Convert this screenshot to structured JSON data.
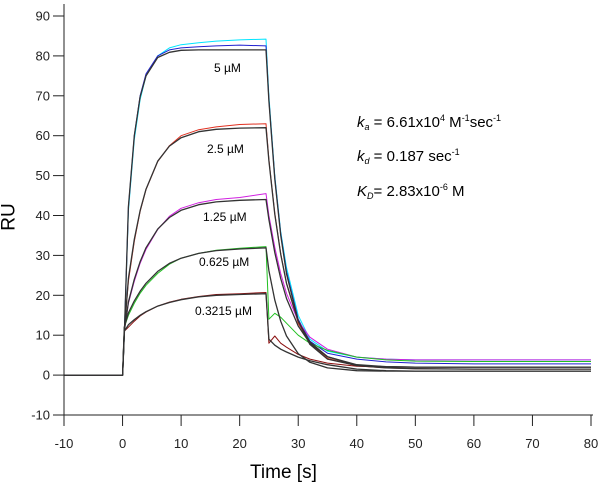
{
  "chart_data": {
    "type": "line",
    "xlabel": "Time [s]",
    "ylabel": "RU",
    "xlim": [
      -10,
      80
    ],
    "ylim": [
      -10,
      90
    ],
    "xticks": [
      -10,
      0,
      10,
      20,
      30,
      40,
      50,
      60,
      70,
      80
    ],
    "yticks": [
      -10,
      0,
      10,
      20,
      30,
      40,
      50,
      60,
      70,
      80,
      90
    ],
    "grid": false,
    "x": [
      -10,
      0,
      0.3,
      1,
      2,
      3,
      4,
      6,
      8,
      10,
      13,
      16,
      20,
      24.5,
      25,
      26,
      27,
      28,
      30,
      32,
      35,
      40,
      45,
      50,
      60,
      70,
      80
    ],
    "series": [
      {
        "color": "#00e5ff",
        "values": [
          0,
          0,
          10,
          41,
          59,
          69,
          75,
          80,
          82,
          82.8,
          83.3,
          83.7,
          84,
          84.2,
          70,
          50,
          36,
          27,
          15,
          9,
          6,
          4.5,
          4,
          3.8,
          3.8,
          3.8,
          3.8
        ]
      },
      {
        "color": "#2020d0",
        "values": [
          0,
          0,
          10,
          42,
          60,
          70,
          75.5,
          80,
          81.5,
          82,
          82.3,
          82.5,
          82.7,
          82.5,
          69,
          49.5,
          35.5,
          26,
          14,
          8.5,
          5.5,
          4,
          3.3,
          3,
          2.8,
          2.8,
          2.8
        ]
      },
      {
        "color": "#e03020",
        "values": [
          0,
          0,
          11,
          23.5,
          33.5,
          41,
          46.5,
          53.5,
          57.5,
          60,
          61.5,
          62.2,
          62.8,
          63,
          54,
          40.5,
          30.5,
          23,
          13,
          8,
          4.2,
          2.3,
          1.8,
          1.6,
          1.5,
          1.5,
          1.5
        ]
      },
      {
        "color": "#d020e0",
        "values": [
          0,
          0,
          11,
          18,
          23.5,
          28,
          31.5,
          36.5,
          39.8,
          41.8,
          43.2,
          44,
          44.5,
          45.5,
          40,
          32,
          25.5,
          20.5,
          13.5,
          9.5,
          6.5,
          4.5,
          4,
          3.8,
          3.8,
          3.8,
          3.8
        ]
      },
      {
        "color": "#20c020",
        "values": [
          0,
          0,
          12,
          15,
          18,
          20.5,
          22.5,
          25.5,
          27.8,
          29.3,
          30.5,
          31.3,
          31.8,
          32.2,
          14,
          15.5,
          14.5,
          13,
          10,
          8,
          6.2,
          4.5,
          3.8,
          3.5,
          3.4,
          3.4,
          3.4
        ]
      },
      {
        "color": "#8b1010",
        "values": [
          0,
          0,
          11,
          12,
          13.5,
          14.8,
          15.8,
          17.3,
          18.3,
          19,
          19.7,
          20.2,
          20.4,
          20.7,
          8,
          9.8,
          8,
          7,
          5.2,
          4,
          3,
          2.2,
          2,
          2,
          2,
          2,
          2
        ]
      },
      {
        "color": "#333333",
        "values": [
          0,
          0,
          10,
          42.2,
          60.0,
          69.7,
          75.0,
          79.6,
          80.9,
          81.4,
          81.5,
          81.5,
          81.5,
          81.5,
          68.7,
          49.1,
          35.1,
          25.4,
          13.6,
          7.7,
          4.0,
          2.4,
          2.1,
          2.0,
          2.0,
          2.0,
          2.0
        ]
      },
      {
        "color": "#333333",
        "values": [
          0,
          0,
          11,
          24.2,
          34.0,
          41.2,
          46.6,
          53.6,
          57.4,
          59.5,
          61.0,
          61.6,
          61.9,
          62.0,
          53.7,
          40.3,
          30.3,
          23.0,
          13.5,
          8.3,
          4.6,
          2.6,
          2.1,
          2.0,
          2.0,
          2.0,
          2.0
        ]
      },
      {
        "color": "#333333",
        "values": [
          0,
          0,
          11,
          18.3,
          24.0,
          28.4,
          31.9,
          36.6,
          39.5,
          41.3,
          42.7,
          43.4,
          43.8,
          44.0,
          39.0,
          30.7,
          24.2,
          19.2,
          12.3,
          8.0,
          4.6,
          2.4,
          1.8,
          1.6,
          1.5,
          1.5,
          1.5
        ]
      },
      {
        "color": "#333333",
        "values": [
          0,
          0,
          12,
          15.6,
          18.6,
          21.0,
          23.0,
          26.0,
          28.0,
          29.3,
          30.5,
          31.2,
          31.6,
          31.9,
          26.2,
          18.8,
          13.5,
          9.8,
          5.4,
          3.2,
          1.8,
          1.1,
          1.0,
          1.0,
          1.0,
          1.0,
          1.0
        ]
      },
      {
        "color": "#333333",
        "values": [
          0,
          0,
          11,
          12.6,
          13.9,
          15.0,
          15.9,
          17.3,
          18.2,
          18.9,
          19.6,
          20.0,
          20.2,
          20.4,
          9.0,
          7.5,
          6.5,
          5.8,
          4.5,
          3.6,
          2.6,
          1.5,
          1.1,
          1.0,
          1.0,
          1.0,
          1.0
        ]
      }
    ],
    "annotations": {
      "concentrations": [
        "5 µM",
        "2.5 µM",
        "1.25 µM",
        "0.625 µM",
        "0.3215 µM"
      ],
      "ka": {
        "symbol": "k",
        "sub": "a",
        "text": " = 6.61x10",
        "exp": "4",
        "unit1": " M",
        "unit1_exp": "-1",
        "unit2": "sec",
        "unit2_exp": "-1"
      },
      "kd": {
        "symbol": "k",
        "sub": "d",
        "text": " = 0.187 sec",
        "exp": "-1"
      },
      "KD": {
        "symbol": "K",
        "sub": "D",
        "text": "= 2.83x10",
        "exp": "-6",
        "unit": " M"
      }
    }
  }
}
